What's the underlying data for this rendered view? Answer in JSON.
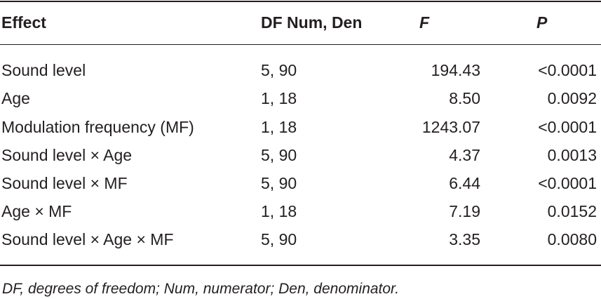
{
  "table": {
    "headers": {
      "effect": "Effect",
      "df": "DF Num, Den",
      "f": "F",
      "p": "P"
    },
    "rows": [
      {
        "effect": "Sound level",
        "df": "5, 90",
        "f": "194.43",
        "p": "<0.0001"
      },
      {
        "effect": "Age",
        "df": "1, 18",
        "f": "8.50",
        "p": "0.0092"
      },
      {
        "effect": "Modulation frequency (MF)",
        "df": "1, 18",
        "f": "1243.07",
        "p": "<0.0001"
      },
      {
        "effect": "Sound level × Age",
        "df": "5, 90",
        "f": "4.37",
        "p": "0.0013"
      },
      {
        "effect": "Sound level × MF",
        "df": "5, 90",
        "f": "6.44",
        "p": "<0.0001"
      },
      {
        "effect": "Age × MF",
        "df": "1, 18",
        "f": "7.19",
        "p": "0.0152"
      },
      {
        "effect": "Sound level × Age × MF",
        "df": "5, 90",
        "f": "3.35",
        "p": "0.0080"
      }
    ]
  },
  "footnote": "DF, degrees of freedom; Num, numerator; Den, denominator."
}
